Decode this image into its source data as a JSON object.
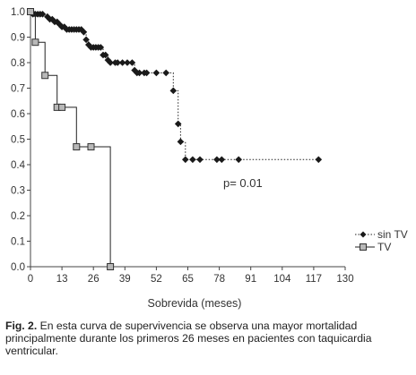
{
  "caption": {
    "label": "Fig. 2.",
    "text": "En esta curva de supervivencia se observa una mayor mortalidad principalmente durante los primeros 26 meses en pacientes con taquicardia ventricular."
  },
  "chart_data": {
    "type": "line",
    "xlabel": "Sobrevida (meses)",
    "ylabel": "",
    "xlim": [
      0,
      130
    ],
    "ylim": [
      0,
      1.0
    ],
    "xticks": [
      0,
      13,
      26,
      39,
      52,
      65,
      78,
      91,
      104,
      117,
      130
    ],
    "yticks": [
      "0.0",
      "0.1",
      "0.2",
      "0.3",
      "0.4",
      "0.5",
      "0.6",
      "0.7",
      "0.8",
      "0.9",
      "1.0"
    ],
    "legend_position": "right",
    "annotation": "p= 0.01",
    "series": [
      {
        "name": "sin TV",
        "marker": "diamond",
        "line_style": "dotted",
        "color": "#222222",
        "x": [
          0,
          1,
          2,
          3,
          4,
          5,
          7,
          8,
          9,
          10,
          11,
          12,
          13,
          14,
          15,
          16,
          17,
          18,
          19,
          20,
          21,
          22,
          23,
          24,
          25,
          26,
          27,
          28,
          29,
          30,
          31,
          32,
          33,
          35,
          36,
          38,
          40,
          42,
          43,
          44,
          45,
          47,
          48,
          52,
          56,
          59,
          61,
          62,
          64,
          67,
          70,
          77,
          79,
          86,
          119
        ],
        "y": [
          1.0,
          0.99,
          0.99,
          0.99,
          0.99,
          0.99,
          0.98,
          0.97,
          0.97,
          0.96,
          0.96,
          0.95,
          0.94,
          0.94,
          0.93,
          0.93,
          0.93,
          0.93,
          0.93,
          0.93,
          0.93,
          0.92,
          0.89,
          0.87,
          0.86,
          0.86,
          0.86,
          0.86,
          0.86,
          0.83,
          0.83,
          0.81,
          0.8,
          0.8,
          0.8,
          0.8,
          0.8,
          0.8,
          0.77,
          0.76,
          0.76,
          0.76,
          0.76,
          0.76,
          0.76,
          0.69,
          0.56,
          0.49,
          0.42,
          0.42,
          0.42,
          0.42,
          0.42,
          0.42,
          0.42
        ]
      },
      {
        "name": "TV",
        "marker": "square",
        "line_style": "solid",
        "color": "#222222",
        "x": [
          0,
          2,
          6,
          11,
          13,
          19,
          25,
          33
        ],
        "y": [
          1.0,
          0.88,
          0.75,
          0.625,
          0.625,
          0.47,
          0.47,
          0.0
        ]
      }
    ]
  }
}
